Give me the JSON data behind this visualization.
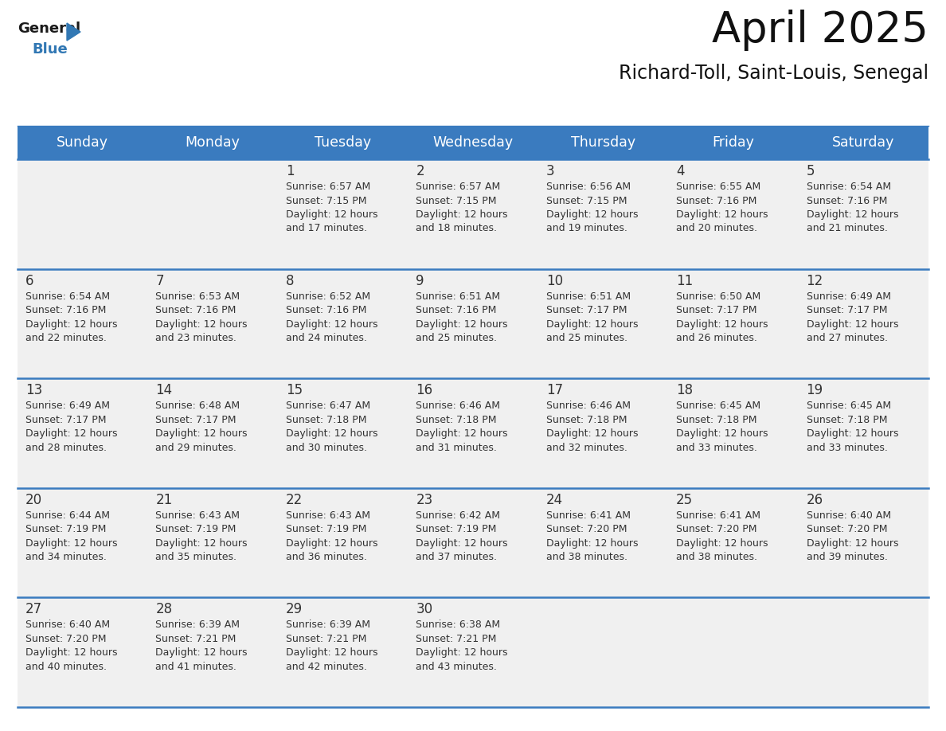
{
  "title": "April 2025",
  "subtitle": "Richard-Toll, Saint-Louis, Senegal",
  "days_of_week": [
    "Sunday",
    "Monday",
    "Tuesday",
    "Wednesday",
    "Thursday",
    "Friday",
    "Saturday"
  ],
  "header_bg": "#3a7bbf",
  "header_text": "#ffffff",
  "row_bg": "#f0f0f0",
  "cell_text_color": "#333333",
  "separator_color": "#3a7bbf",
  "calendar_data": [
    [
      {
        "day": null,
        "sunrise": null,
        "sunset": null,
        "daylight_min": null
      },
      {
        "day": null,
        "sunrise": null,
        "sunset": null,
        "daylight_min": null
      },
      {
        "day": 1,
        "sunrise": "6:57 AM",
        "sunset": "7:15 PM",
        "daylight_min": 17
      },
      {
        "day": 2,
        "sunrise": "6:57 AM",
        "sunset": "7:15 PM",
        "daylight_min": 18
      },
      {
        "day": 3,
        "sunrise": "6:56 AM",
        "sunset": "7:15 PM",
        "daylight_min": 19
      },
      {
        "day": 4,
        "sunrise": "6:55 AM",
        "sunset": "7:16 PM",
        "daylight_min": 20
      },
      {
        "day": 5,
        "sunrise": "6:54 AM",
        "sunset": "7:16 PM",
        "daylight_min": 21
      }
    ],
    [
      {
        "day": 6,
        "sunrise": "6:54 AM",
        "sunset": "7:16 PM",
        "daylight_min": 22
      },
      {
        "day": 7,
        "sunrise": "6:53 AM",
        "sunset": "7:16 PM",
        "daylight_min": 23
      },
      {
        "day": 8,
        "sunrise": "6:52 AM",
        "sunset": "7:16 PM",
        "daylight_min": 24
      },
      {
        "day": 9,
        "sunrise": "6:51 AM",
        "sunset": "7:16 PM",
        "daylight_min": 25
      },
      {
        "day": 10,
        "sunrise": "6:51 AM",
        "sunset": "7:17 PM",
        "daylight_min": 25
      },
      {
        "day": 11,
        "sunrise": "6:50 AM",
        "sunset": "7:17 PM",
        "daylight_min": 26
      },
      {
        "day": 12,
        "sunrise": "6:49 AM",
        "sunset": "7:17 PM",
        "daylight_min": 27
      }
    ],
    [
      {
        "day": 13,
        "sunrise": "6:49 AM",
        "sunset": "7:17 PM",
        "daylight_min": 28
      },
      {
        "day": 14,
        "sunrise": "6:48 AM",
        "sunset": "7:17 PM",
        "daylight_min": 29
      },
      {
        "day": 15,
        "sunrise": "6:47 AM",
        "sunset": "7:18 PM",
        "daylight_min": 30
      },
      {
        "day": 16,
        "sunrise": "6:46 AM",
        "sunset": "7:18 PM",
        "daylight_min": 31
      },
      {
        "day": 17,
        "sunrise": "6:46 AM",
        "sunset": "7:18 PM",
        "daylight_min": 32
      },
      {
        "day": 18,
        "sunrise": "6:45 AM",
        "sunset": "7:18 PM",
        "daylight_min": 33
      },
      {
        "day": 19,
        "sunrise": "6:45 AM",
        "sunset": "7:18 PM",
        "daylight_min": 33
      }
    ],
    [
      {
        "day": 20,
        "sunrise": "6:44 AM",
        "sunset": "7:19 PM",
        "daylight_min": 34
      },
      {
        "day": 21,
        "sunrise": "6:43 AM",
        "sunset": "7:19 PM",
        "daylight_min": 35
      },
      {
        "day": 22,
        "sunrise": "6:43 AM",
        "sunset": "7:19 PM",
        "daylight_min": 36
      },
      {
        "day": 23,
        "sunrise": "6:42 AM",
        "sunset": "7:19 PM",
        "daylight_min": 37
      },
      {
        "day": 24,
        "sunrise": "6:41 AM",
        "sunset": "7:20 PM",
        "daylight_min": 38
      },
      {
        "day": 25,
        "sunrise": "6:41 AM",
        "sunset": "7:20 PM",
        "daylight_min": 38
      },
      {
        "day": 26,
        "sunrise": "6:40 AM",
        "sunset": "7:20 PM",
        "daylight_min": 39
      }
    ],
    [
      {
        "day": 27,
        "sunrise": "6:40 AM",
        "sunset": "7:20 PM",
        "daylight_min": 40
      },
      {
        "day": 28,
        "sunrise": "6:39 AM",
        "sunset": "7:21 PM",
        "daylight_min": 41
      },
      {
        "day": 29,
        "sunrise": "6:39 AM",
        "sunset": "7:21 PM",
        "daylight_min": 42
      },
      {
        "day": 30,
        "sunrise": "6:38 AM",
        "sunset": "7:21 PM",
        "daylight_min": 43
      },
      {
        "day": null,
        "sunrise": null,
        "sunset": null,
        "daylight_min": null
      },
      {
        "day": null,
        "sunrise": null,
        "sunset": null,
        "daylight_min": null
      },
      {
        "day": null,
        "sunrise": null,
        "sunset": null,
        "daylight_min": null
      }
    ]
  ],
  "logo_general_color": "#1a1a1a",
  "logo_blue_color": "#3278b4",
  "title_fontsize": 38,
  "subtitle_fontsize": 17,
  "header_fontsize": 12.5,
  "cell_day_fontsize": 12,
  "cell_info_fontsize": 9.0
}
